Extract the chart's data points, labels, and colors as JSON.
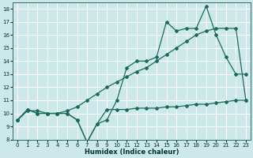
{
  "xlabel": "Humidex (Indice chaleur)",
  "bg_color": "#cde8e8",
  "grid_color": "#ffffff",
  "line_color": "#1a6b5a",
  "xlim": [
    -0.5,
    23.5
  ],
  "ylim": [
    8,
    18.5
  ],
  "xticks": [
    0,
    1,
    2,
    3,
    4,
    5,
    6,
    7,
    8,
    9,
    10,
    11,
    12,
    13,
    14,
    15,
    16,
    17,
    18,
    19,
    20,
    21,
    22,
    23
  ],
  "yticks": [
    8,
    9,
    10,
    11,
    12,
    13,
    14,
    15,
    16,
    17,
    18
  ],
  "curve1_x": [
    0,
    1,
    2,
    3,
    4,
    5,
    6,
    7,
    8,
    9,
    10,
    11,
    12,
    13,
    14,
    15,
    16,
    17,
    18,
    19,
    20,
    21,
    22,
    23
  ],
  "curve1_y": [
    9.5,
    10.3,
    10.0,
    10.0,
    10.0,
    10.0,
    9.5,
    7.8,
    9.2,
    10.3,
    10.3,
    10.3,
    10.4,
    10.4,
    10.4,
    10.5,
    10.5,
    10.6,
    10.7,
    10.7,
    10.8,
    10.9,
    11.0,
    11.0
  ],
  "curve2_x": [
    0,
    1,
    2,
    3,
    4,
    5,
    6,
    7,
    8,
    9,
    10,
    11,
    12,
    13,
    14,
    15,
    16,
    17,
    18,
    19,
    20,
    21,
    22,
    23
  ],
  "curve2_y": [
    9.5,
    10.2,
    10.2,
    10.0,
    10.0,
    10.2,
    10.5,
    11.0,
    11.5,
    12.0,
    12.4,
    12.8,
    13.2,
    13.5,
    14.0,
    14.5,
    15.0,
    15.5,
    16.0,
    16.3,
    16.5,
    16.5,
    16.5,
    11.0
  ],
  "curve3_x": [
    0,
    1,
    2,
    3,
    4,
    5,
    6,
    7,
    8,
    9,
    10,
    11,
    12,
    13,
    14,
    15,
    16,
    17,
    18,
    19,
    20,
    21,
    22,
    23
  ],
  "curve3_y": [
    9.5,
    10.3,
    10.0,
    10.0,
    10.0,
    10.0,
    9.5,
    7.8,
    9.2,
    9.5,
    11.0,
    13.5,
    14.0,
    14.0,
    14.3,
    17.0,
    16.3,
    16.5,
    16.5,
    18.2,
    16.0,
    14.3,
    13.0,
    13.0
  ]
}
